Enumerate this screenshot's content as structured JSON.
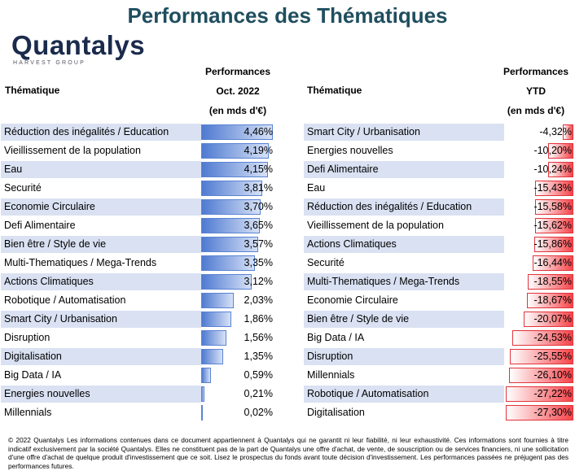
{
  "title": "Performances des Thématiques",
  "logo": {
    "name": "Quantalys",
    "sub": "HARVEST GROUP"
  },
  "left_table": {
    "col_label": "Thématique",
    "header_lines": [
      "Performances",
      "Oct. 2022",
      "(en mds d'€)"
    ]
  },
  "right_table": {
    "col_label": "Thématique",
    "header_lines": [
      "Performances",
      "YTD",
      "(en mds d'€)"
    ]
  },
  "chart_data": [
    {
      "type": "bar",
      "title": "Performances Oct. 2022",
      "categories": [
        "Réduction des inégalités / Education",
        "Vieillissement de la population",
        "Eau",
        "Securité",
        "Economie Circulaire",
        "Defi Alimentaire",
        "Bien être / Style de vie",
        "Multi-Thematiques / Mega-Trends",
        "Actions Climatiques",
        "Robotique / Automatisation",
        "Smart City / Urbanisation",
        "Disruption",
        "Digitalisation",
        "Big Data / IA",
        "Energies nouvelles",
        "Millennials"
      ],
      "values": [
        4.46,
        4.19,
        4.15,
        3.81,
        3.7,
        3.65,
        3.57,
        3.35,
        3.12,
        2.03,
        1.86,
        1.56,
        1.35,
        0.59,
        0.21,
        0.02
      ],
      "labels": [
        "4,46%",
        "4,19%",
        "4,15%",
        "3,81%",
        "3,70%",
        "3,65%",
        "3,57%",
        "3,35%",
        "3,12%",
        "2,03%",
        "1,86%",
        "1,56%",
        "1,35%",
        "0,59%",
        "0,21%",
        "0,02%"
      ],
      "color": "#4f7ad1",
      "xlim": [
        0,
        4.46
      ]
    },
    {
      "type": "bar",
      "title": "Performances YTD",
      "categories": [
        "Smart City / Urbanisation",
        "Energies nouvelles",
        "Defi Alimentaire",
        "Eau",
        "Réduction des inégalités / Education",
        "Vieillissement de la population",
        "Actions Climatiques",
        "Securité",
        "Multi-Thematiques / Mega-Trends",
        "Economie Circulaire",
        "Bien être / Style de vie",
        "Big Data / IA",
        "Disruption",
        "Millennials",
        "Robotique / Automatisation",
        "Digitalisation"
      ],
      "values": [
        -4.32,
        -10.2,
        -10.24,
        -15.43,
        -15.58,
        -15.62,
        -15.86,
        -16.44,
        -18.55,
        -18.67,
        -20.07,
        -24.53,
        -25.55,
        -26.1,
        -27.22,
        -27.3
      ],
      "labels": [
        "-4,32%",
        "-10,20%",
        "-10,24%",
        "-15,43%",
        "-15,58%",
        "-15,62%",
        "-15,86%",
        "-16,44%",
        "-18,55%",
        "-18,67%",
        "-20,07%",
        "-24,53%",
        "-25,55%",
        "-26,10%",
        "-27,22%",
        "-27,30%"
      ],
      "color": "#f5444a",
      "xlim": [
        -27.3,
        0
      ]
    }
  ],
  "footer": "© 2022 Quantalys Les informations contenues dans ce document appartiennent à Quantalys qui ne garantit ni leur fiabilité, ni leur exhaustivité. Ces informations sont fournies à titre indicatif exclusivement par la société Quantalys. Elles ne constituent pas de la part de Quantalys une offre d'achat, de vente, de souscription ou de services financiers, ni une sollicitation d'une offre d'achat de quelque produit d'investissement que ce soit. Lisez le prospectus du fonds avant toute décision d'investissement. Les performances passées ne préjugent pas des performances futures."
}
